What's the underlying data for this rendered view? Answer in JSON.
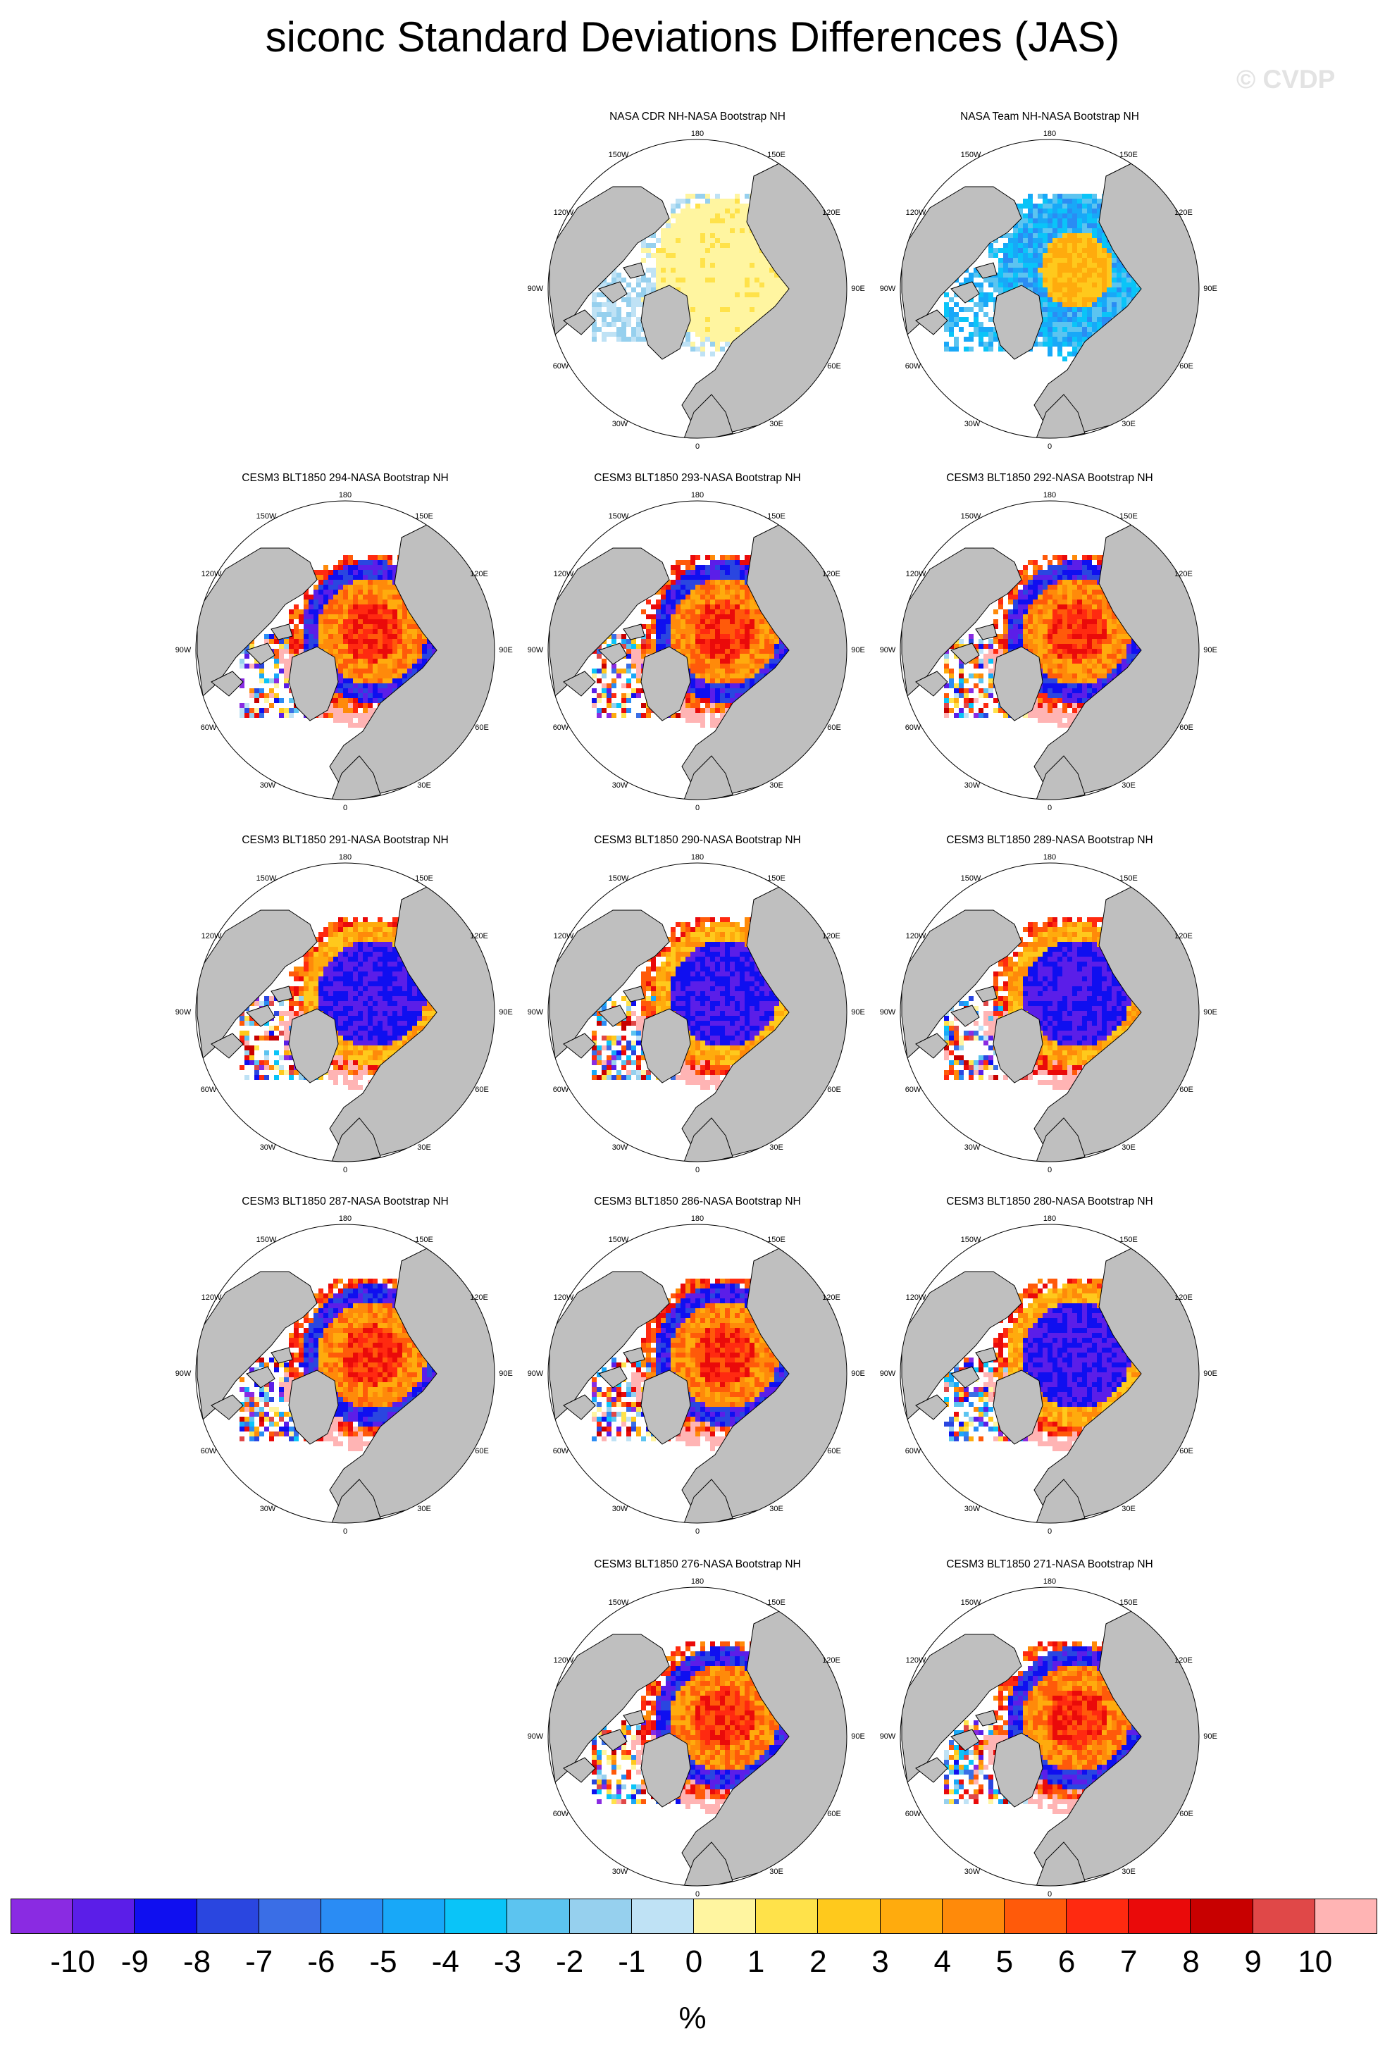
{
  "title": "siconc Standard Deviations Differences (JAS)",
  "watermark": "© CVDP",
  "colors": {
    "land": "#bfbfbf",
    "ocean": "#ffffff",
    "coast": "#000000"
  },
  "chart_data": {
    "type": "heatmap",
    "projection": "north polar stereographic",
    "variable": "siconc",
    "season": "JAS",
    "map_labels": {
      "top": "180",
      "upper_left": "150W",
      "upper_right": "150E",
      "mid_upper_left": "120W",
      "mid_upper_right": "120E",
      "left": "90W",
      "right": "90E",
      "mid_lower_left": "60W",
      "mid_lower_right": "60E",
      "lower_left": "30W",
      "lower_right": "30E",
      "bottom": "0"
    },
    "panels": [
      {
        "title": "NASA CDR NH-NASA Bootstrap NH",
        "pattern": "cdr"
      },
      {
        "title": "NASA Team NH-NASA Bootstrap NH",
        "pattern": "team"
      },
      {
        "title": "CESM3 BLT1850 294-NASA Bootstrap NH",
        "pattern": "model"
      },
      {
        "title": "CESM3 BLT1850 293-NASA Bootstrap NH",
        "pattern": "model"
      },
      {
        "title": "CESM3 BLT1850 292-NASA Bootstrap NH",
        "pattern": "model"
      },
      {
        "title": "CESM3 BLT1850 291-NASA Bootstrap NH",
        "pattern": "model-neg"
      },
      {
        "title": "CESM3 BLT1850 290-NASA Bootstrap NH",
        "pattern": "model-neg"
      },
      {
        "title": "CESM3 BLT1850 289-NASA Bootstrap NH",
        "pattern": "model-neg"
      },
      {
        "title": "CESM3 BLT1850 287-NASA Bootstrap NH",
        "pattern": "model"
      },
      {
        "title": "CESM3 BLT1850 286-NASA Bootstrap NH",
        "pattern": "model"
      },
      {
        "title": "CESM3 BLT1850 280-NASA Bootstrap NH",
        "pattern": "model-neg"
      },
      {
        "title": "CESM3 BLT1850 276-NASA Bootstrap NH",
        "pattern": "model"
      },
      {
        "title": "CESM3 BLT1850 271-NASA Bootstrap NH",
        "pattern": "model"
      }
    ],
    "colorbar": {
      "units": "%",
      "tick_labels": [
        "-10",
        "-9",
        "-8",
        "-7",
        "-6",
        "-5",
        "-4",
        "-3",
        "-2",
        "-1",
        "0",
        "1",
        "2",
        "3",
        "4",
        "5",
        "6",
        "7",
        "8",
        "9",
        "10"
      ],
      "colors": [
        "#8a2be2",
        "#5b1ee8",
        "#0f0ff0",
        "#2a46e0",
        "#3a6ee6",
        "#2a8cf4",
        "#18a8f8",
        "#0ac4f8",
        "#5cc4f0",
        "#96d0ee",
        "#bfe2f5",
        "#fff5a0",
        "#ffe24a",
        "#ffc91c",
        "#ffab0d",
        "#ff8a0a",
        "#ff5a0a",
        "#ff2a10",
        "#ea0a0a",
        "#c80000",
        "#e04848",
        "#ffb4b4"
      ]
    }
  }
}
